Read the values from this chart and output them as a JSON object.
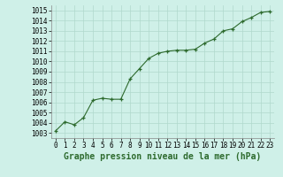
{
  "x": [
    0,
    1,
    2,
    3,
    4,
    5,
    6,
    7,
    8,
    9,
    10,
    11,
    12,
    13,
    14,
    15,
    16,
    17,
    18,
    19,
    20,
    21,
    22,
    23
  ],
  "y": [
    1003.2,
    1004.1,
    1003.8,
    1004.5,
    1006.2,
    1006.4,
    1006.3,
    1006.3,
    1008.3,
    1009.3,
    1010.3,
    1010.8,
    1011.0,
    1011.1,
    1011.1,
    1011.2,
    1011.8,
    1012.2,
    1013.0,
    1013.2,
    1013.9,
    1014.3,
    1014.8,
    1014.9
  ],
  "xlabel": "Graphe pression niveau de la mer (hPa)",
  "ylim": [
    1002.5,
    1015.5
  ],
  "yticks": [
    1003,
    1004,
    1005,
    1006,
    1007,
    1008,
    1009,
    1010,
    1011,
    1012,
    1013,
    1014,
    1015
  ],
  "xticks": [
    0,
    1,
    2,
    3,
    4,
    5,
    6,
    7,
    8,
    9,
    10,
    11,
    12,
    13,
    14,
    15,
    16,
    17,
    18,
    19,
    20,
    21,
    22,
    23
  ],
  "line_color": "#2d6a2d",
  "marker_color": "#2d6a2d",
  "bg_color": "#cff0e8",
  "grid_color": "#b0d8cc",
  "xlabel_fontsize": 7,
  "tick_fontsize": 5.5
}
